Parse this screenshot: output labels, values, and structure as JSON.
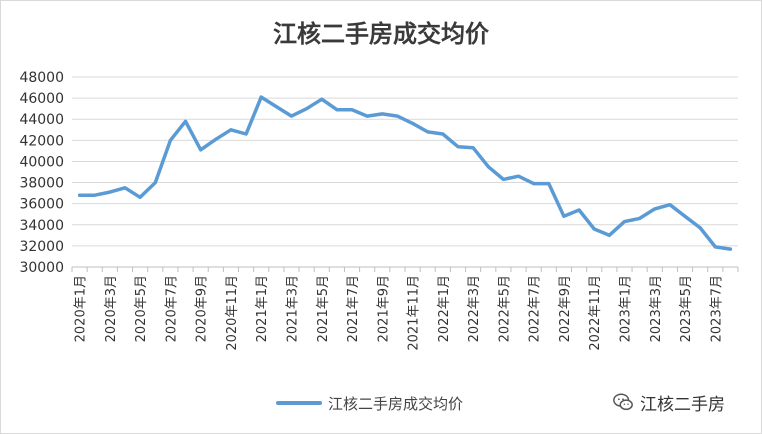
{
  "chart_data": {
    "type": "line",
    "title": "江核二手房成交均价",
    "xlabel": "",
    "ylabel": "",
    "ylim": [
      30000,
      48000
    ],
    "yticks": [
      30000,
      32000,
      34000,
      36000,
      38000,
      40000,
      42000,
      44000,
      46000,
      48000
    ],
    "grid": true,
    "legend": "bottom",
    "color": "#5b9bd5",
    "categories": [
      "2020年1月",
      "2020年2月",
      "2020年3月",
      "2020年4月",
      "2020年5月",
      "2020年6月",
      "2020年7月",
      "2020年8月",
      "2020年9月",
      "2020年10月",
      "2020年11月",
      "2020年12月",
      "2021年1月",
      "2021年2月",
      "2021年3月",
      "2021年4月",
      "2021年5月",
      "2021年6月",
      "2021年7月",
      "2021年8月",
      "2021年9月",
      "2021年10月",
      "2021年11月",
      "2021年12月",
      "2022年1月",
      "2022年2月",
      "2022年3月",
      "2022年4月",
      "2022年5月",
      "2022年6月",
      "2022年7月",
      "2022年8月",
      "2022年9月",
      "2022年10月",
      "2022年11月",
      "2022年12月",
      "2023年1月",
      "2023年2月",
      "2023年3月",
      "2023年4月",
      "2023年5月",
      "2023年6月",
      "2023年7月",
      "2023年8月"
    ],
    "shown_ticks": [
      "2020年1月",
      "2020年3月",
      "2020年5月",
      "2020年7月",
      "2020年9月",
      "2020年11月",
      "2021年1月",
      "2021年3月",
      "2021年5月",
      "2021年7月",
      "2021年9月",
      "2021年11月",
      "2022年1月",
      "2022年3月",
      "2022年5月",
      "2022年7月",
      "2022年9月",
      "2022年11月",
      "2023年1月",
      "2023年3月",
      "2023年5月",
      "2023年7月"
    ],
    "series": [
      {
        "name": "江核二手房成交均价",
        "values": [
          36800,
          36800,
          37100,
          37500,
          36600,
          38000,
          42000,
          43800,
          41100,
          42100,
          43000,
          42600,
          46100,
          45200,
          44300,
          45000,
          45900,
          44900,
          44900,
          44300,
          44500,
          44300,
          43600,
          42800,
          42600,
          41400,
          41300,
          39500,
          38300,
          38600,
          37900,
          37900,
          34800,
          35400,
          33600,
          33000,
          34300,
          34600,
          35500,
          35900,
          34800,
          33700,
          31900,
          31700
        ]
      }
    ]
  },
  "watermark": {
    "text": "江核二手房",
    "icon": "wechat-icon"
  }
}
